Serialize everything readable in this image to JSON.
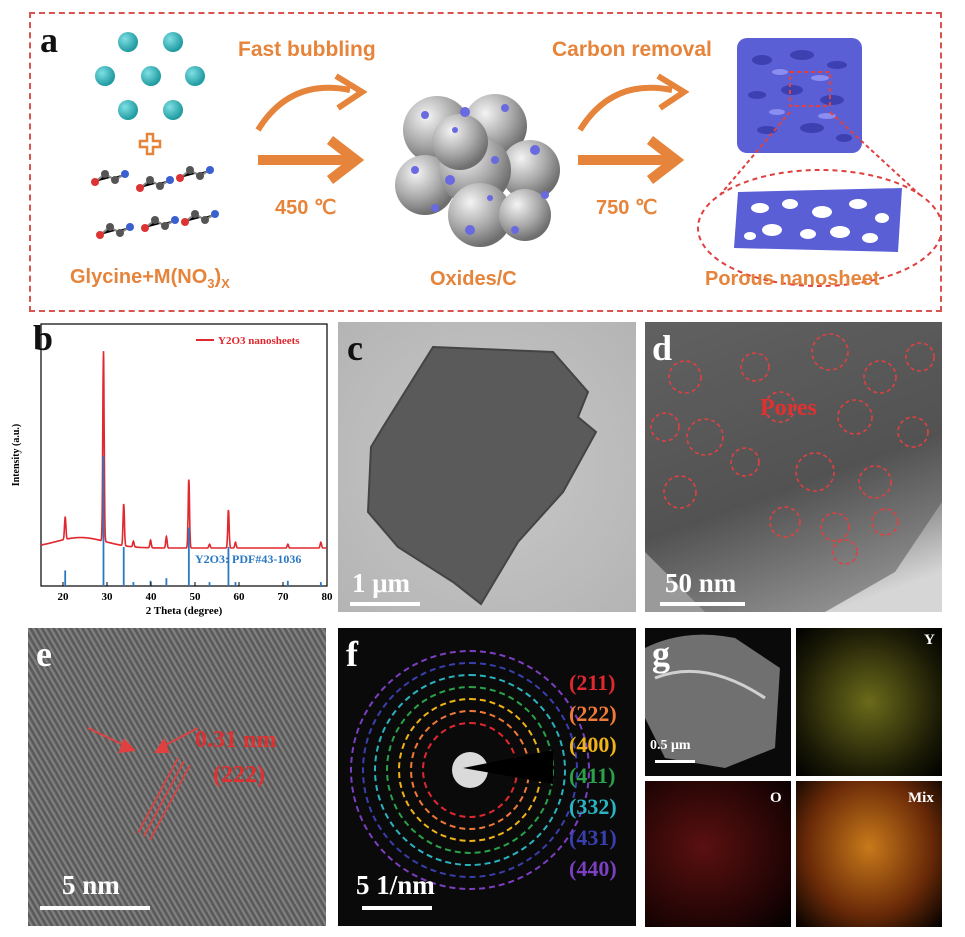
{
  "panel_a": {
    "label": "a",
    "fast_bubbling": "Fast bubbling",
    "carbon_removal": "Carbon removal",
    "temp1": "450 ℃",
    "temp2": "750 ℃",
    "precursor_main": "Glycine+M(NO",
    "precursor_sub3": "3",
    "precursor_close": ")",
    "precursor_subx": "X",
    "oxides_label": "Oxides/C",
    "porous_label": "Porous nanosheet",
    "colors": {
      "accent": "#e5843a",
      "dashed_border": "#d9534f",
      "ion": "#2bb3b8",
      "nanosheet": "#5b5fd6"
    }
  },
  "panel_b": {
    "label": "b",
    "legend_text": "Y2O3 nanosheets",
    "reference_text": "Y2O3: PDF#43-1036",
    "chart_data": {
      "type": "line",
      "xlabel": "2 Theta (degree)",
      "ylabel": "Intensity (a.u.)",
      "xlim": [
        15,
        80
      ],
      "xticks": [
        20,
        30,
        40,
        50,
        60,
        70,
        80
      ],
      "series": [
        {
          "name": "Y2O3 nanosheets",
          "color": "#e0282e",
          "peaks": [
            [
              20.5,
              0.12
            ],
            [
              29.2,
              1.0
            ],
            [
              33.8,
              0.22
            ],
            [
              36.0,
              0.03
            ],
            [
              39.9,
              0.04
            ],
            [
              43.5,
              0.06
            ],
            [
              48.6,
              0.36
            ],
            [
              53.3,
              0.02
            ],
            [
              57.6,
              0.2
            ],
            [
              59.2,
              0.03
            ],
            [
              71.1,
              0.02
            ],
            [
              78.6,
              0.03
            ]
          ]
        },
        {
          "name": "Y2O3: PDF#43-1036",
          "color": "#2a78c2",
          "sticks": [
            [
              20.5,
              0.12
            ],
            [
              29.2,
              1.0
            ],
            [
              33.8,
              0.3
            ],
            [
              36.0,
              0.03
            ],
            [
              39.9,
              0.04
            ],
            [
              43.5,
              0.06
            ],
            [
              48.6,
              0.45
            ],
            [
              53.3,
              0.03
            ],
            [
              57.6,
              0.3
            ],
            [
              59.2,
              0.03
            ],
            [
              71.1,
              0.04
            ],
            [
              78.6,
              0.03
            ]
          ]
        }
      ]
    }
  },
  "panel_c": {
    "label": "c",
    "scale": "1 μm"
  },
  "panel_d": {
    "label": "d",
    "pores": "Pores",
    "scale": "50 nm"
  },
  "panel_e": {
    "label": "e",
    "d_spacing": "0.31 nm",
    "plane": "(222)",
    "scale": "5 nm"
  },
  "panel_f": {
    "label": "f",
    "scale": "5 1/nm",
    "rings": [
      {
        "hkl": "(211)",
        "color": "#e0282e"
      },
      {
        "hkl": "(222)",
        "color": "#f07a3a"
      },
      {
        "hkl": "(400)",
        "color": "#f0b418"
      },
      {
        "hkl": "(411)",
        "color": "#2aa14a"
      },
      {
        "hkl": "(332)",
        "color": "#2ab3c0"
      },
      {
        "hkl": "(431)",
        "color": "#3a3fb0"
      },
      {
        "hkl": "(440)",
        "color": "#7b3fc0"
      }
    ]
  },
  "panel_g": {
    "label": "g",
    "scale": "0.5 μm",
    "map_y": "Y",
    "map_o": "O",
    "map_mix": "Mix"
  }
}
